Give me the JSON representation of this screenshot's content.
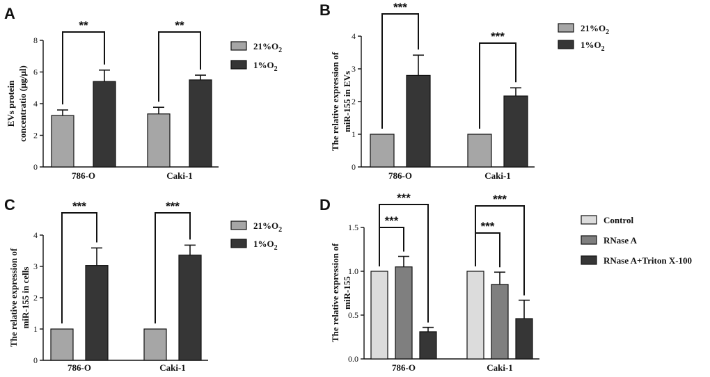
{
  "colors": {
    "light": "#dcdcdc",
    "mid": "#a6a6a6",
    "dark_mid": "#7f7f7f",
    "dark": "#363636",
    "edge": "#111111"
  },
  "chart_data": [
    {
      "panel": "A",
      "type": "bar",
      "categories": [
        "786-O",
        "Caki-1"
      ],
      "ylabel_lines": [
        "EVs protein",
        "concentratio (μg/μl)"
      ],
      "ylim": [
        0,
        8
      ],
      "yticks": [
        "0",
        "2",
        "4",
        "6",
        "8"
      ],
      "ytick_values": [
        0,
        2,
        4,
        6,
        8
      ],
      "series": [
        {
          "name": "21%O",
          "sub": "2",
          "color": "#a6a6a6",
          "values": [
            3.25,
            3.35
          ],
          "errors": [
            0.35,
            0.42
          ]
        },
        {
          "name": "1%O",
          "sub": "2",
          "color": "#363636",
          "values": [
            5.4,
            5.5
          ],
          "errors": [
            0.72,
            0.3
          ]
        }
      ],
      "significance": [
        {
          "group": 0,
          "from": 0,
          "to": 1,
          "label": "**"
        },
        {
          "group": 1,
          "from": 0,
          "to": 1,
          "label": "**"
        }
      ]
    },
    {
      "panel": "B",
      "type": "bar",
      "categories": [
        "786-O",
        "Caki-1"
      ],
      "ylabel_lines": [
        "The relative expression of",
        "miR-155 in EVs"
      ],
      "ylim": [
        0,
        4
      ],
      "yticks": [
        "0",
        "1",
        "2",
        "3",
        "4"
      ],
      "ytick_values": [
        0,
        1,
        2,
        3,
        4
      ],
      "series": [
        {
          "name": "21%O",
          "sub": "2",
          "color": "#a6a6a6",
          "values": [
            1.0,
            1.0
          ],
          "errors": [
            0,
            0
          ]
        },
        {
          "name": "1%O",
          "sub": "2",
          "color": "#363636",
          "values": [
            2.8,
            2.17
          ],
          "errors": [
            0.62,
            0.25
          ]
        }
      ],
      "significance": [
        {
          "group": 0,
          "from": 0,
          "to": 1,
          "label": "***"
        },
        {
          "group": 1,
          "from": 0,
          "to": 1,
          "label": "***"
        }
      ]
    },
    {
      "panel": "C",
      "type": "bar",
      "categories": [
        "786-O",
        "Caki-1"
      ],
      "ylabel_lines": [
        "The relative expression of",
        "miR-155 in cells"
      ],
      "ylim": [
        0,
        4
      ],
      "yticks": [
        "0",
        "1",
        "2",
        "3",
        "4"
      ],
      "ytick_values": [
        0,
        1,
        2,
        3,
        4
      ],
      "series": [
        {
          "name": "21%O",
          "sub": "2",
          "color": "#a6a6a6",
          "values": [
            1.0,
            1.0
          ],
          "errors": [
            0,
            0
          ]
        },
        {
          "name": "1%O",
          "sub": "2",
          "color": "#363636",
          "values": [
            3.03,
            3.36
          ],
          "errors": [
            0.56,
            0.32
          ]
        }
      ],
      "significance": [
        {
          "group": 0,
          "from": 0,
          "to": 1,
          "label": "***"
        },
        {
          "group": 1,
          "from": 0,
          "to": 1,
          "label": "***"
        }
      ]
    },
    {
      "panel": "D",
      "type": "bar",
      "categories": [
        "786-O",
        "Caki-1"
      ],
      "ylabel_lines": [
        "The relative expression of",
        "miR-155"
      ],
      "ylim": [
        0,
        1.5
      ],
      "yticks": [
        "0.0",
        "0.5",
        "1.0",
        "1.5"
      ],
      "ytick_values": [
        0,
        0.5,
        1.0,
        1.5
      ],
      "series": [
        {
          "name": "Control",
          "sub": "",
          "color": "#dcdcdc",
          "values": [
            1.0,
            1.0
          ],
          "errors": [
            0,
            0
          ]
        },
        {
          "name": "RNase A",
          "sub": "",
          "color": "#7f7f7f",
          "values": [
            1.05,
            0.85
          ],
          "errors": [
            0.12,
            0.14
          ]
        },
        {
          "name": "RNase A+Triton X-100",
          "sub": "",
          "color": "#363636",
          "values": [
            0.31,
            0.46
          ],
          "errors": [
            0.05,
            0.21
          ]
        }
      ],
      "significance": [
        {
          "group": 0,
          "from": 0,
          "to": 1,
          "label": "***"
        },
        {
          "group": 0,
          "from": 0,
          "to": 2,
          "label": "***"
        },
        {
          "group": 1,
          "from": 0,
          "to": 1,
          "label": "***"
        },
        {
          "group": 1,
          "from": 0,
          "to": 2,
          "label": "***"
        }
      ]
    }
  ]
}
